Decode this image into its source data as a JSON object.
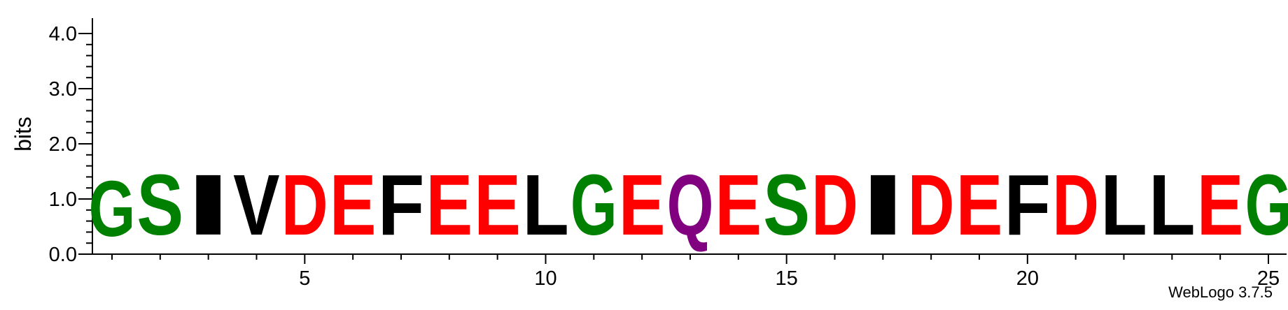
{
  "chart_data": {
    "type": "sequence-logo",
    "ylabel": "bits",
    "ylim": [
      0,
      4.0
    ],
    "y_ticks": [
      "0.0",
      "1.0",
      "2.0",
      "3.0",
      "4.0"
    ],
    "x_tick_labels": [
      "5",
      "10",
      "15",
      "20",
      "25"
    ],
    "x_tick_values": [
      5,
      10,
      15,
      20,
      25
    ],
    "positions": [
      1,
      2,
      3,
      4,
      5,
      6,
      7,
      8,
      9,
      10,
      11,
      12,
      13,
      14,
      15,
      16,
      17,
      18,
      19,
      20,
      21,
      22,
      23,
      24,
      25
    ],
    "residues": [
      "G",
      "S",
      "I",
      "V",
      "D",
      "E",
      "F",
      "E",
      "E",
      "L",
      "G",
      "E",
      "Q",
      "E",
      "S",
      "D",
      "I",
      "D",
      "E",
      "F",
      "D",
      "L",
      "L",
      "E",
      "G"
    ],
    "heights_bits": [
      1.6,
      1.75,
      1.75,
      1.75,
      1.75,
      1.75,
      1.75,
      1.75,
      1.75,
      1.75,
      1.75,
      1.75,
      1.75,
      1.75,
      1.75,
      1.75,
      1.75,
      1.75,
      1.75,
      1.75,
      1.75,
      1.75,
      1.75,
      1.75,
      1.75
    ],
    "color_scheme": {
      "G": "#008000",
      "S": "#008000",
      "Q": "#800080",
      "D": "#ff0000",
      "E": "#ff0000",
      "I": "#000000",
      "V": "#000000",
      "F": "#000000",
      "L": "#000000"
    }
  },
  "footer": "WebLogo 3.7.5"
}
